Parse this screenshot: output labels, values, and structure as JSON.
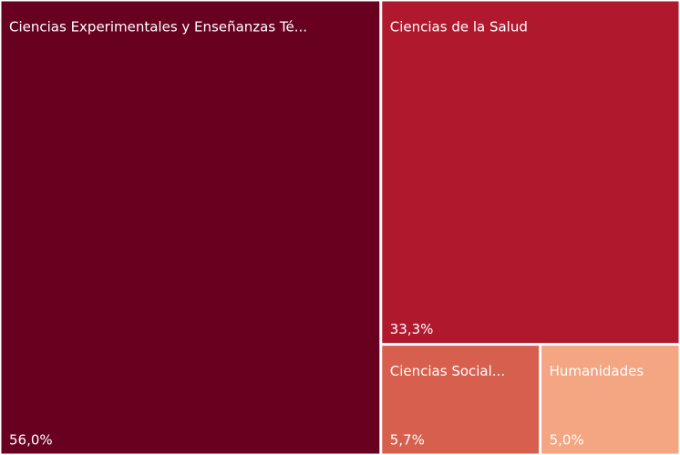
{
  "chart_data": {
    "type": "treemap",
    "categories": [
      "Ciencias Experimentales y Enseñanzas Té...",
      "Ciencias de la Salud",
      "Ciencias Social...",
      "Humanidades"
    ],
    "values": [
      56.0,
      33.3,
      5.7,
      5.0
    ],
    "value_labels": [
      "56,0%",
      "33,3%",
      "5,7%",
      "5,0%"
    ],
    "colors": [
      "#680020",
      "#b0192d",
      "#d6604d",
      "#f4a582"
    ]
  }
}
